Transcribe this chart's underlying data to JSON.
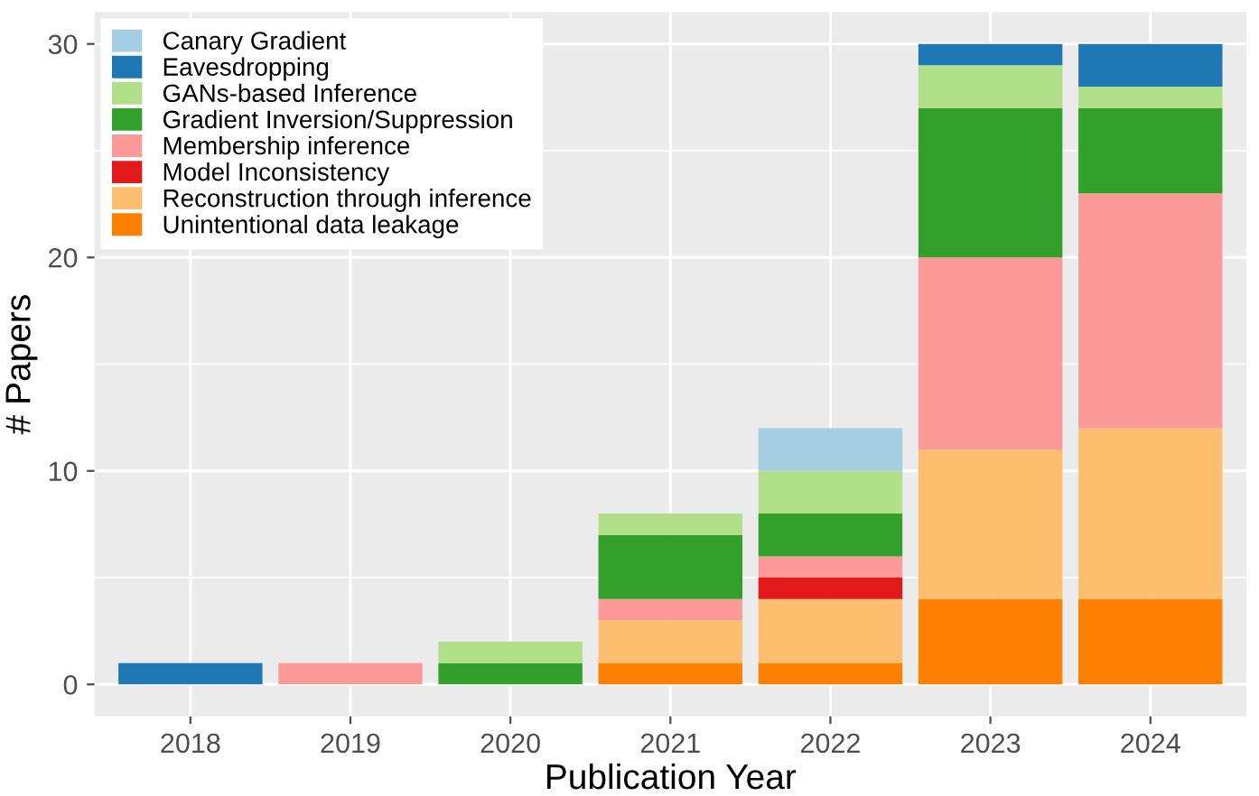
{
  "chart_data": {
    "type": "bar",
    "stacked": true,
    "xlabel": "Publication Year",
    "ylabel": "# Papers",
    "categories": [
      "2018",
      "2019",
      "2020",
      "2021",
      "2022",
      "2023",
      "2024"
    ],
    "series": [
      {
        "name": "Unintentional data leakage",
        "color": "#ff7f00",
        "values": [
          0,
          0,
          0,
          1,
          1,
          4,
          4
        ]
      },
      {
        "name": "Reconstruction through inference",
        "color": "#fdbf6f",
        "values": [
          0,
          0,
          0,
          2,
          3,
          7,
          8
        ]
      },
      {
        "name": "Model Inconsistency",
        "color": "#e31a1c",
        "values": [
          0,
          0,
          0,
          0,
          1,
          0,
          0
        ]
      },
      {
        "name": "Membership inference",
        "color": "#fb9a99",
        "values": [
          0,
          1,
          0,
          1,
          1,
          9,
          11
        ]
      },
      {
        "name": "Gradient Inversion/Suppression",
        "color": "#33a02c",
        "values": [
          0,
          0,
          1,
          3,
          2,
          7,
          4
        ]
      },
      {
        "name": "GANs-based Inference",
        "color": "#b2df8a",
        "values": [
          0,
          0,
          1,
          1,
          2,
          2,
          1
        ]
      },
      {
        "name": "Eavesdropping",
        "color": "#1f78b4",
        "values": [
          1,
          0,
          0,
          0,
          0,
          1,
          2
        ]
      },
      {
        "name": "Canary Gradient",
        "color": "#a6cee3",
        "values": [
          0,
          0,
          0,
          0,
          2,
          0,
          0
        ]
      }
    ],
    "ylim": [
      -1.5,
      31.5
    ],
    "yticks": [
      0,
      10,
      20,
      30
    ],
    "grid": true,
    "legend": "top left"
  }
}
